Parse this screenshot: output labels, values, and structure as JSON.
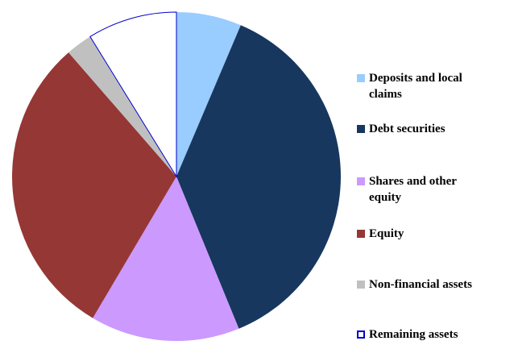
{
  "chart_data": {
    "type": "pie",
    "categories": [
      "Deposits and local claims",
      "Debt securities",
      "Shares and other equity",
      "Equity",
      "Non-financial assets",
      "Remaining assets"
    ],
    "values": [
      6.4,
      37.4,
      14.7,
      30.1,
      2.6,
      8.8
    ],
    "colors": [
      "#99ccff",
      "#17375e",
      "#cc99ff",
      "#953735",
      "#c0c0c0",
      "#ffffff"
    ],
    "legend": "right"
  }
}
